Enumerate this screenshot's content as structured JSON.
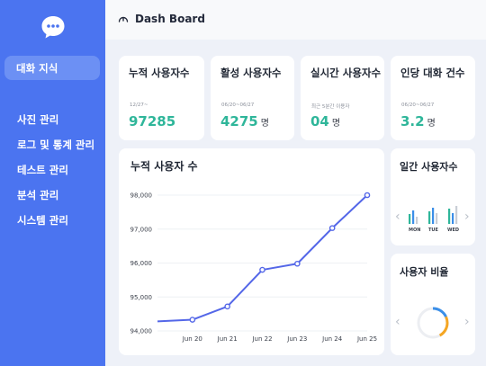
{
  "sidebar": {
    "active_item": "대화 지식",
    "items": [
      "사진 관리",
      "로그 및 통계 관리",
      "테스트 관리",
      "분석 관리",
      "시스템 관리"
    ]
  },
  "header": {
    "title": "Dash Board"
  },
  "stats": [
    {
      "title": "누적 사용자수",
      "sub": "12/27~",
      "value": "97285",
      "unit": ""
    },
    {
      "title": "활성 사용자수",
      "sub": "06/20~06/27",
      "value": "4275",
      "unit": "명"
    },
    {
      "title": "실시간 사용자수",
      "sub": "최근 5분간 이용자",
      "value": "04",
      "unit": "명"
    },
    {
      "title": "인당 대화 건수",
      "sub": "06/20~06/27",
      "value": "3.2",
      "unit": "명"
    }
  ],
  "weekly": {
    "title": "일간 사용자수",
    "days": [
      "MON",
      "TUE",
      "WED"
    ]
  },
  "ratio": {
    "title": "사용자 비율",
    "value": 0.42
  },
  "chart_data": {
    "type": "line",
    "title": "누적 사용자 수",
    "x": [
      "",
      "Jun 20",
      "Jun 21",
      "Jun 22",
      "Jun 23",
      "Jun 24",
      "Jun 25"
    ],
    "tick_labels": [
      "Jun 20",
      "Jun 21",
      "Jun 22",
      "Jun 23",
      "Jun 24",
      "Jun 25"
    ],
    "values": [
      94280,
      94330,
      94720,
      95800,
      95980,
      97030,
      98000
    ],
    "ylim": [
      94000,
      98000
    ],
    "yticks": [
      94000,
      95000,
      96000,
      97000,
      98000
    ],
    "ytick_labels": [
      "94,000",
      "95,000",
      "96,000",
      "97,000",
      "98,000"
    ],
    "grid": true,
    "color": "#5467e8"
  }
}
